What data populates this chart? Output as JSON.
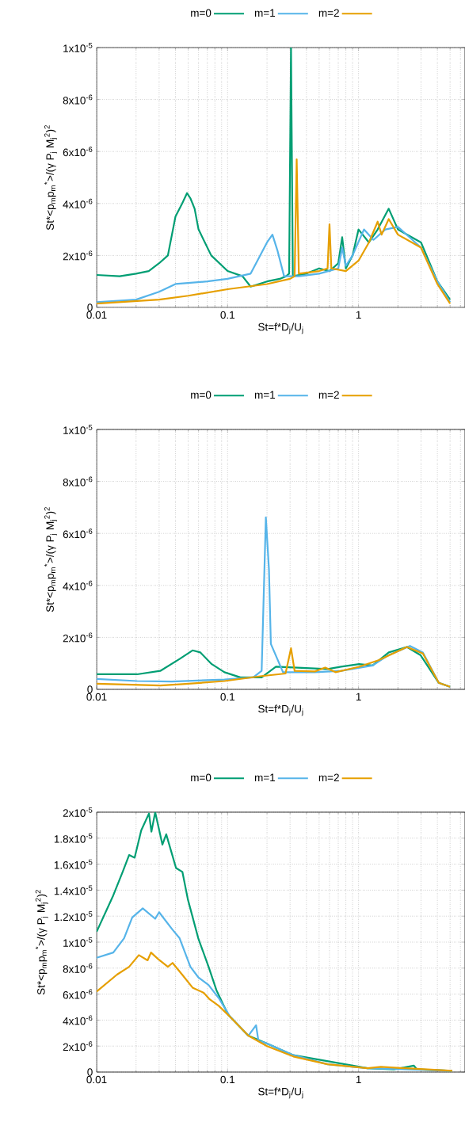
{
  "chart_data": [
    {
      "type": "line",
      "xlabel": "St=f*D$_{j}$/U$_{j}$",
      "ylabel": "St*<p$_{m}$p$_{m}$$^{*}$>/(γ P$_{j}$ M$_{j}$$^{2}$)$^{2}$",
      "log": "x",
      "grid": true,
      "legend": "top",
      "xlim": [
        0.01,
        6.5
      ],
      "xticks": [
        0.01,
        0.1,
        1
      ],
      "ylim": [
        0,
        1e-05
      ],
      "yticks": [
        0,
        {
          "value": 2e-06,
          "label": "2x10$^{-6}$"
        },
        {
          "value": 4e-06,
          "label": "4x10$^{-6}$"
        },
        {
          "value": 6e-06,
          "label": "6x10$^{-6}$"
        },
        {
          "value": 8e-06,
          "label": "8x10$^{-6}$"
        },
        {
          "value": 1e-05,
          "label": "1x10$^{-5}$"
        }
      ],
      "series": [
        {
          "name": "m=0",
          "color": "#009e73",
          "x": [
            0.01,
            0.015,
            0.02,
            0.025,
            0.03,
            0.035,
            0.04,
            0.045,
            0.049,
            0.052,
            0.056,
            0.06,
            0.075,
            0.1,
            0.13,
            0.15,
            0.2,
            0.25,
            0.28,
            0.295,
            0.305,
            0.315,
            0.4,
            0.5,
            0.6,
            0.7,
            0.75,
            0.8,
            0.9,
            1.0,
            1.2,
            1.4,
            1.7,
            2.0,
            3.0,
            4.0,
            5.0
          ],
          "values": [
            1.25e-06,
            1.2e-06,
            1.3e-06,
            1.4e-06,
            1.7e-06,
            2e-06,
            3.5e-06,
            4e-06,
            4.4e-06,
            4.2e-06,
            3.8e-06,
            3e-06,
            2e-06,
            1.4e-06,
            1.2e-06,
            8e-07,
            1e-06,
            1.1e-06,
            1.2e-06,
            1.3e-06,
            1e-05,
            1.2e-06,
            1.3e-06,
            1.5e-06,
            1.4e-06,
            1.7e-06,
            2.7e-06,
            1.5e-06,
            2e-06,
            3e-06,
            2.5e-06,
            3e-06,
            3.8e-06,
            3e-06,
            2.5e-06,
            1e-06,
            3e-07
          ]
        },
        {
          "name": "m=1",
          "color": "#56b4e9",
          "x": [
            0.01,
            0.02,
            0.03,
            0.04,
            0.07,
            0.1,
            0.15,
            0.2,
            0.22,
            0.24,
            0.27,
            0.35,
            0.5,
            0.7,
            0.75,
            0.8,
            0.9,
            1.1,
            1.3,
            1.6,
            2.0,
            3.0,
            4.0,
            5.0
          ],
          "values": [
            2e-07,
            3e-07,
            6e-07,
            9e-07,
            1e-06,
            1.1e-06,
            1.3e-06,
            2.5e-06,
            2.8e-06,
            2.2e-06,
            1.2e-06,
            1.2e-06,
            1.3e-06,
            1.5e-06,
            2.3e-06,
            1.6e-06,
            2e-06,
            3e-06,
            2.6e-06,
            3e-06,
            3.1e-06,
            2.3e-06,
            1e-06,
            2e-07
          ]
        },
        {
          "name": "m=2",
          "color": "#e69f00",
          "x": [
            0.01,
            0.03,
            0.05,
            0.1,
            0.2,
            0.3,
            0.325,
            0.337,
            0.35,
            0.5,
            0.58,
            0.6,
            0.62,
            0.8,
            1.0,
            1.2,
            1.4,
            1.5,
            1.7,
            2.0,
            3.0,
            4.0,
            5.0
          ],
          "values": [
            1.5e-07,
            3e-07,
            4.5e-07,
            7e-07,
            9e-07,
            1.1e-06,
            1.2e-06,
            5.7e-06,
            1.3e-06,
            1.4e-06,
            1.5e-06,
            3.2e-06,
            1.5e-06,
            1.4e-06,
            1.8e-06,
            2.5e-06,
            3.3e-06,
            2.8e-06,
            3.4e-06,
            2.8e-06,
            2.3e-06,
            9e-07,
            1.5e-07
          ]
        }
      ]
    },
    {
      "type": "line",
      "xlabel": "St=f*D$_{j}$/U$_{j}$",
      "ylabel": "St*<p$_{m}$p$_{m}$$^{*}$>/(γ P$_{j}$ M$_{j}$$^{2}$)$^{2}$",
      "log": "x",
      "grid": true,
      "legend": "top",
      "xlim": [
        0.01,
        6.5
      ],
      "xticks": [
        0.01,
        0.1,
        1
      ],
      "ylim": [
        0,
        1e-05
      ],
      "yticks": [
        0,
        {
          "value": 2e-06,
          "label": "2x10$^{-6}$"
        },
        {
          "value": 4e-06,
          "label": "4x10$^{-6}$"
        },
        {
          "value": 6e-06,
          "label": "6x10$^{-6}$"
        },
        {
          "value": 8e-06,
          "label": "8x10$^{-6}$"
        },
        {
          "value": 1e-05,
          "label": "1x10$^{-5}$"
        }
      ],
      "series": [
        {
          "name": "m=0",
          "color": "#009e73",
          "x": [
            0.01,
            0.0204,
            0.0306,
            0.043,
            0.054,
            0.062,
            0.0757,
            0.0946,
            0.125,
            0.182,
            0.234,
            0.318,
            0.58,
            0.736,
            1.01,
            1.28,
            1.7,
            2.34,
            2.97,
            4.1,
            5.0
          ],
          "values": [
            5.8e-07,
            5.8e-07,
            7.1e-07,
            1.17e-06,
            1.5e-06,
            1.42e-06,
            9.7e-07,
            6.6e-07,
            4.6e-07,
            4.6e-07,
            8.7e-07,
            8.4e-07,
            7.8e-07,
            8.7e-07,
            9.7e-07,
            9.2e-07,
            1.42e-06,
            1.63e-06,
            1.32e-06,
            2.5e-07,
            1e-07
          ]
        },
        {
          "name": "m=1",
          "color": "#56b4e9",
          "x": [
            0.01,
            0.0204,
            0.0375,
            0.0946,
            0.157,
            0.182,
            0.196,
            0.207,
            0.214,
            0.265,
            0.464,
            0.736,
            1.28,
            1.7,
            2.47,
            3.1,
            4.1,
            5.0
          ],
          "values": [
            4e-07,
            3.2e-07,
            3e-07,
            3.8e-07,
            4.6e-07,
            7.1e-07,
            6.62e-06,
            4.6e-06,
            1.75e-06,
            6.6e-07,
            6.6e-07,
            7.1e-07,
            9.2e-07,
            1.32e-06,
            1.67e-06,
            1.42e-06,
            2.5e-07,
            1e-07
          ]
        },
        {
          "name": "m=2",
          "color": "#e69f00",
          "x": [
            0.01,
            0.0306,
            0.0454,
            0.0946,
            0.182,
            0.277,
            0.305,
            0.325,
            0.464,
            0.556,
            0.667,
            1.01,
            1.42,
            2.34,
            3.1,
            4.1,
            5.0
          ],
          "values": [
            2.2e-07,
            1.5e-07,
            2e-07,
            3.2e-07,
            5.1e-07,
            6.1e-07,
            1.58e-06,
            7.1e-07,
            6.9e-07,
            8.4e-07,
            6.6e-07,
            8.7e-07,
            1.12e-06,
            1.63e-06,
            1.38e-06,
            2.5e-07,
            1e-07
          ]
        }
      ]
    },
    {
      "type": "line",
      "xlabel": "St=f*D$_{j}$/U$_{j}$",
      "ylabel": "St*<p$_{m}$p$_{m}$$^{*}$>/(γ P$_{j}$ M$_{j}$$^{2}$)$^{2}$",
      "log": "x",
      "grid": true,
      "legend": "top",
      "xlim": [
        0.01,
        6.5
      ],
      "xticks": [
        0.01,
        0.1,
        1
      ],
      "ylim": [
        0,
        2e-05
      ],
      "yticks": [
        0,
        {
          "value": 2e-06,
          "label": "2x10$^{-6}$"
        },
        {
          "value": 4e-06,
          "label": "4x10$^{-6}$"
        },
        {
          "value": 6e-06,
          "label": "6x10$^{-6}$"
        },
        {
          "value": 8e-06,
          "label": "8x10$^{-6}$"
        },
        {
          "value": 1e-05,
          "label": "1x10$^{-5}$"
        },
        {
          "value": 1.2e-05,
          "label": "1.2x10$^{-5}$"
        },
        {
          "value": 1.4e-05,
          "label": "1.4x10$^{-5}$"
        },
        {
          "value": 1.6e-05,
          "label": "1.6x10$^{-5}$"
        },
        {
          "value": 1.8e-05,
          "label": "1.8x10$^{-5}$"
        },
        {
          "value": 2e-05,
          "label": "2x10$^{-5}$"
        }
      ],
      "series": [
        {
          "name": "m=0",
          "color": "#009e73",
          "x": [
            0.01,
            0.0134,
            0.0158,
            0.0177,
            0.0195,
            0.0219,
            0.0251,
            0.0262,
            0.028,
            0.0318,
            0.034,
            0.0404,
            0.0452,
            0.0497,
            0.0597,
            0.0716,
            0.0822,
            0.101,
            0.144,
            0.2,
            0.318,
            1.17,
            1.86,
            2.64,
            2.8,
            5.2
          ],
          "values": [
            1.08e-05,
            1.36e-05,
            1.54e-05,
            1.67e-05,
            1.65e-05,
            1.86e-05,
            1.99e-05,
            1.85e-05,
            2e-05,
            1.75e-05,
            1.83e-05,
            1.57e-05,
            1.54e-05,
            1.33e-05,
            1.03e-05,
            8.1e-06,
            6.3e-06,
            4.4e-06,
            2.8e-06,
            2.2e-06,
            1.3e-06,
            3e-07,
            2e-07,
            5e-07,
            2e-07,
            1e-07
          ]
        },
        {
          "name": "m=1",
          "color": "#56b4e9",
          "x": [
            0.01,
            0.0134,
            0.0162,
            0.0187,
            0.0225,
            0.028,
            0.03,
            0.0377,
            0.043,
            0.052,
            0.0597,
            0.0716,
            0.0855,
            0.104,
            0.144,
            0.165,
            0.172,
            0.2,
            0.318,
            0.58,
            1.17,
            5.2
          ],
          "values": [
            8.8e-06,
            9.2e-06,
            1.03e-05,
            1.19e-05,
            1.26e-05,
            1.18e-05,
            1.23e-05,
            1.1e-05,
            1.03e-05,
            8.1e-06,
            7.3e-06,
            6.7e-06,
            5.7e-06,
            4.3e-06,
            2.8e-06,
            3.6e-06,
            2.4e-06,
            2.2e-06,
            1.3e-06,
            6e-07,
            3e-07,
            1e-07
          ]
        },
        {
          "name": "m=2",
          "color": "#e69f00",
          "x": [
            0.01,
            0.0143,
            0.0177,
            0.021,
            0.0245,
            0.026,
            0.0295,
            0.035,
            0.038,
            0.045,
            0.054,
            0.0658,
            0.073,
            0.0855,
            0.101,
            0.144,
            0.2,
            0.318,
            0.58,
            1.17,
            1.48,
            5.2
          ],
          "values": [
            6.2e-06,
            7.5e-06,
            8.1e-06,
            9e-06,
            8.6e-06,
            9.2e-06,
            8.7e-06,
            8.1e-06,
            8.4e-06,
            7.5e-06,
            6.5e-06,
            6.1e-06,
            5.6e-06,
            5.1e-06,
            4.4e-06,
            2.8e-06,
            2e-06,
            1.2e-06,
            6e-07,
            3e-07,
            4e-07,
            1e-07
          ]
        }
      ]
    }
  ]
}
